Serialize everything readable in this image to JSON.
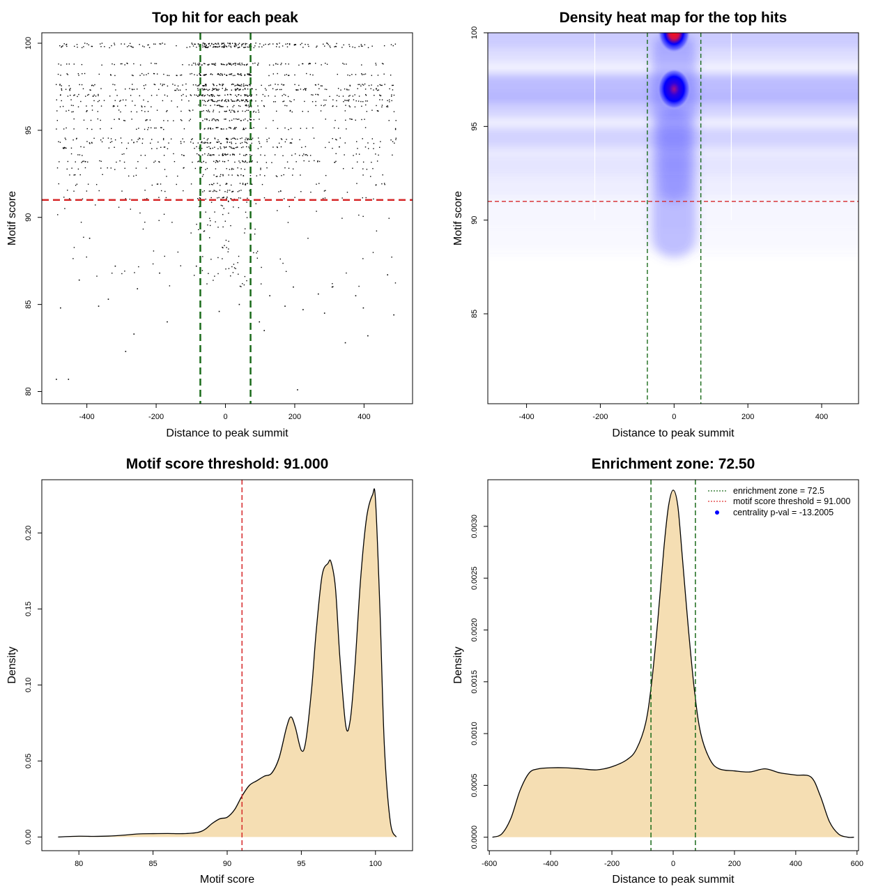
{
  "figure": {
    "panels": {
      "scatter": {
        "title": "Top hit for each peak",
        "xlabel": "Distance to peak summit",
        "ylabel": "Motif score"
      },
      "heatmap": {
        "title": "Density heat map for the top hits",
        "xlabel": "Distance to peak summit",
        "ylabel": "Motif score"
      },
      "score_density": {
        "title": "Motif score threshold: 91.000",
        "xlabel": "Motif score",
        "ylabel": "Density"
      },
      "distance_density": {
        "title": "Enrichment zone: 72.50",
        "xlabel": "Distance to peak summit",
        "ylabel": "Density",
        "legend": [
          {
            "label": "enrichment zone = 72.5",
            "style": "dotted",
            "color": "#1a6b1a"
          },
          {
            "label": "motif score threshold = 91.000",
            "style": "dotted",
            "color": "#e03030"
          },
          {
            "label": "centrality p-val = -13.2005",
            "style": "dot",
            "color": "#0000ff"
          }
        ]
      }
    },
    "colors": {
      "threshold": "#d62728",
      "zone": "#1a6b1a",
      "fill": "#f5deb3",
      "points": "#000000",
      "heat_low": "#ffffff",
      "heat_mid": "#0000ff",
      "heat_high": "#ff0000"
    }
  },
  "chart_data": [
    {
      "type": "scatter",
      "title": "Top hit for each peak",
      "xlabel": "Distance to peak summit",
      "ylabel": "Motif score",
      "xlim": [
        -530,
        540
      ],
      "ylim": [
        79.3,
        100.6
      ],
      "xticks": [
        -400,
        -200,
        0,
        200,
        400
      ],
      "yticks": [
        80,
        85,
        90,
        95,
        100
      ],
      "score_levels": [
        99.95,
        99.8,
        98.8,
        98.2,
        97.6,
        97.35,
        97.0,
        96.7,
        96.4,
        96.1,
        95.6,
        95.1,
        94.5,
        94.3,
        94.0,
        93.6,
        93.2,
        92.8,
        92.4,
        91.9,
        91.5,
        91.1
      ],
      "threshold": 91.0,
      "enrichment_zone": [
        -72.5,
        72.5
      ],
      "outliers": [
        [
          -488,
          80.7
        ],
        [
          -453,
          80.7
        ],
        [
          208,
          80.1
        ],
        [
          -288,
          82.3
        ],
        [
          -264,
          83.3
        ],
        [
          411,
          83.2
        ],
        [
          -422,
          86.4
        ],
        [
          -476,
          84.8
        ],
        [
          -366,
          84.9
        ],
        [
          -338,
          85.3
        ],
        [
          -168,
          84.0
        ],
        [
          -254,
          85.9
        ],
        [
          -190,
          86.8
        ],
        [
          -84,
          87.2
        ],
        [
          -72,
          83.2
        ],
        [
          -18,
          84.6
        ],
        [
          40,
          85.0
        ],
        [
          98,
          84.0
        ],
        [
          112,
          83.5
        ],
        [
          128,
          85.5
        ],
        [
          172,
          84.9
        ],
        [
          196,
          86.0
        ],
        [
          224,
          84.7
        ],
        [
          268,
          85.6
        ],
        [
          286,
          84.5
        ],
        [
          308,
          86.0
        ],
        [
          346,
          82.8
        ],
        [
          376,
          85.5
        ],
        [
          398,
          84.8
        ],
        [
          468,
          86.7
        ],
        [
          486,
          84.4
        ],
        [
          -392,
          88.8
        ],
        [
          -318,
          87.2
        ]
      ],
      "n_points": 3800
    },
    {
      "type": "heatmap",
      "title": "Density heat map for the top hits",
      "xlabel": "Distance to peak summit",
      "ylabel": "Motif score",
      "xlim": [
        -505,
        500
      ],
      "ylim": [
        80.2,
        100.0
      ],
      "xticks": [
        -400,
        -200,
        0,
        200,
        400
      ],
      "yticks": [
        85,
        90,
        95,
        100
      ],
      "threshold": 91.0,
      "enrichment_zone": [
        -72.5,
        72.5
      ],
      "peaks": [
        {
          "x": 0,
          "y": 100.0,
          "intensity": 1.0
        },
        {
          "x": 0,
          "y": 97.0,
          "intensity": 0.82
        }
      ]
    },
    {
      "type": "area",
      "title": "Motif score threshold: 91.000",
      "xlabel": "Motif score",
      "ylabel": "Density",
      "xlim": [
        77.5,
        102.5
      ],
      "ylim": [
        -0.009,
        0.235
      ],
      "xticks": [
        80,
        85,
        90,
        95,
        100
      ],
      "yticks": [
        0.0,
        0.05,
        0.1,
        0.15,
        0.2
      ],
      "ytick_labels": [
        "0.00",
        "0.05",
        "0.10",
        "0.15",
        "0.20"
      ],
      "threshold": 91.0,
      "x": [
        78.6,
        80.0,
        81.0,
        82.0,
        83.0,
        84.0,
        85.0,
        86.0,
        87.0,
        88.0,
        88.5,
        89.0,
        89.5,
        90.0,
        90.5,
        91.0,
        91.5,
        92.0,
        92.5,
        93.0,
        93.5,
        94.0,
        94.3,
        94.6,
        95.0,
        95.3,
        95.7,
        96.0,
        96.4,
        96.8,
        97.0,
        97.3,
        97.6,
        98.0,
        98.3,
        98.6,
        99.0,
        99.4,
        99.8,
        100.0,
        100.3,
        100.6,
        101.0,
        101.4
      ],
      "y": [
        0.0,
        0.0005,
        0.0004,
        0.0006,
        0.0012,
        0.002,
        0.0022,
        0.0023,
        0.0022,
        0.003,
        0.005,
        0.009,
        0.012,
        0.013,
        0.018,
        0.027,
        0.034,
        0.037,
        0.04,
        0.042,
        0.052,
        0.072,
        0.079,
        0.072,
        0.057,
        0.063,
        0.098,
        0.135,
        0.172,
        0.18,
        0.181,
        0.164,
        0.118,
        0.073,
        0.077,
        0.11,
        0.17,
        0.21,
        0.225,
        0.222,
        0.15,
        0.06,
        0.01,
        0.0
      ]
    },
    {
      "type": "area",
      "title": "Enrichment zone: 72.50",
      "xlabel": "Distance to peak summit",
      "ylabel": "Density",
      "xlim": [
        -605,
        605
      ],
      "ylim": [
        -0.00013,
        0.00345
      ],
      "xticks": [
        -600,
        -400,
        -200,
        0,
        200,
        400,
        600
      ],
      "yticks": [
        0.0,
        0.0005,
        0.001,
        0.0015,
        0.002,
        0.0025,
        0.003
      ],
      "ytick_labels": [
        "0.0000",
        "0.0005",
        "0.0010",
        "0.0015",
        "0.0020",
        "0.0025",
        "0.0030"
      ],
      "enrichment_zone": [
        -72.5,
        72.5
      ],
      "x": [
        -590,
        -560,
        -530,
        -500,
        -470,
        -440,
        -400,
        -350,
        -300,
        -250,
        -200,
        -150,
        -120,
        -90,
        -70,
        -50,
        -30,
        -15,
        0,
        15,
        30,
        50,
        70,
        90,
        120,
        150,
        200,
        250,
        300,
        350,
        400,
        450,
        480,
        510,
        540,
        570,
        590
      ],
      "y": [
        0.0,
        3e-05,
        0.00018,
        0.00045,
        0.00062,
        0.00066,
        0.00067,
        0.00067,
        0.00066,
        0.00065,
        0.00068,
        0.00075,
        0.00085,
        0.0011,
        0.0015,
        0.0021,
        0.0028,
        0.0032,
        0.00335,
        0.0032,
        0.0027,
        0.002,
        0.0014,
        0.001,
        0.00075,
        0.00066,
        0.00064,
        0.00063,
        0.00066,
        0.00062,
        0.0006,
        0.00058,
        0.0004,
        0.00015,
        3e-05,
        0.0,
        0.0
      ]
    }
  ]
}
